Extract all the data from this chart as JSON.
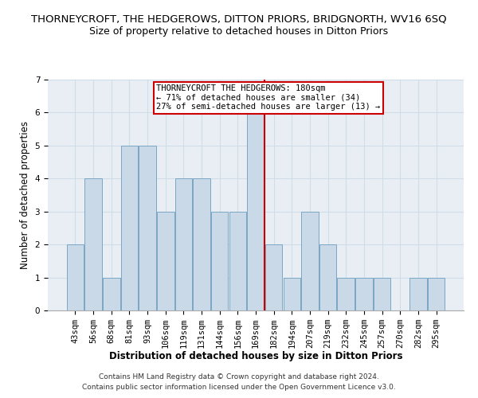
{
  "title": "THORNEYCROFT, THE HEDGEROWS, DITTON PRIORS, BRIDGNORTH, WV16 6SQ",
  "subtitle": "Size of property relative to detached houses in Ditton Priors",
  "xlabel": "Distribution of detached houses by size in Ditton Priors",
  "ylabel": "Number of detached properties",
  "footer_line1": "Contains HM Land Registry data © Crown copyright and database right 2024.",
  "footer_line2": "Contains public sector information licensed under the Open Government Licence v3.0.",
  "categories": [
    "43sqm",
    "56sqm",
    "68sqm",
    "81sqm",
    "93sqm",
    "106sqm",
    "119sqm",
    "131sqm",
    "144sqm",
    "156sqm",
    "169sqm",
    "182sqm",
    "194sqm",
    "207sqm",
    "219sqm",
    "232sqm",
    "245sqm",
    "257sqm",
    "270sqm",
    "282sqm",
    "295sqm"
  ],
  "values": [
    2,
    4,
    1,
    5,
    5,
    3,
    4,
    4,
    3,
    3,
    6,
    2,
    1,
    3,
    2,
    1,
    1,
    1,
    0,
    1,
    1
  ],
  "bar_color": "#c9d9e8",
  "bar_edge_color": "#7ba7c4",
  "highlight_index": 10,
  "highlight_line_color": "#cc0000",
  "annotation_text": "THORNEYCROFT THE HEDGEROWS: 180sqm\n← 71% of detached houses are smaller (34)\n27% of semi-detached houses are larger (13) →",
  "annotation_box_edge": "#cc0000",
  "ylim": [
    0,
    7
  ],
  "yticks": [
    0,
    1,
    2,
    3,
    4,
    5,
    6,
    7
  ],
  "grid_color": "#d0dce8",
  "background_color": "#e8eef4",
  "title_fontsize": 9.5,
  "subtitle_fontsize": 9,
  "axis_label_fontsize": 8.5,
  "tick_fontsize": 7.5,
  "annotation_fontsize": 7.5
}
